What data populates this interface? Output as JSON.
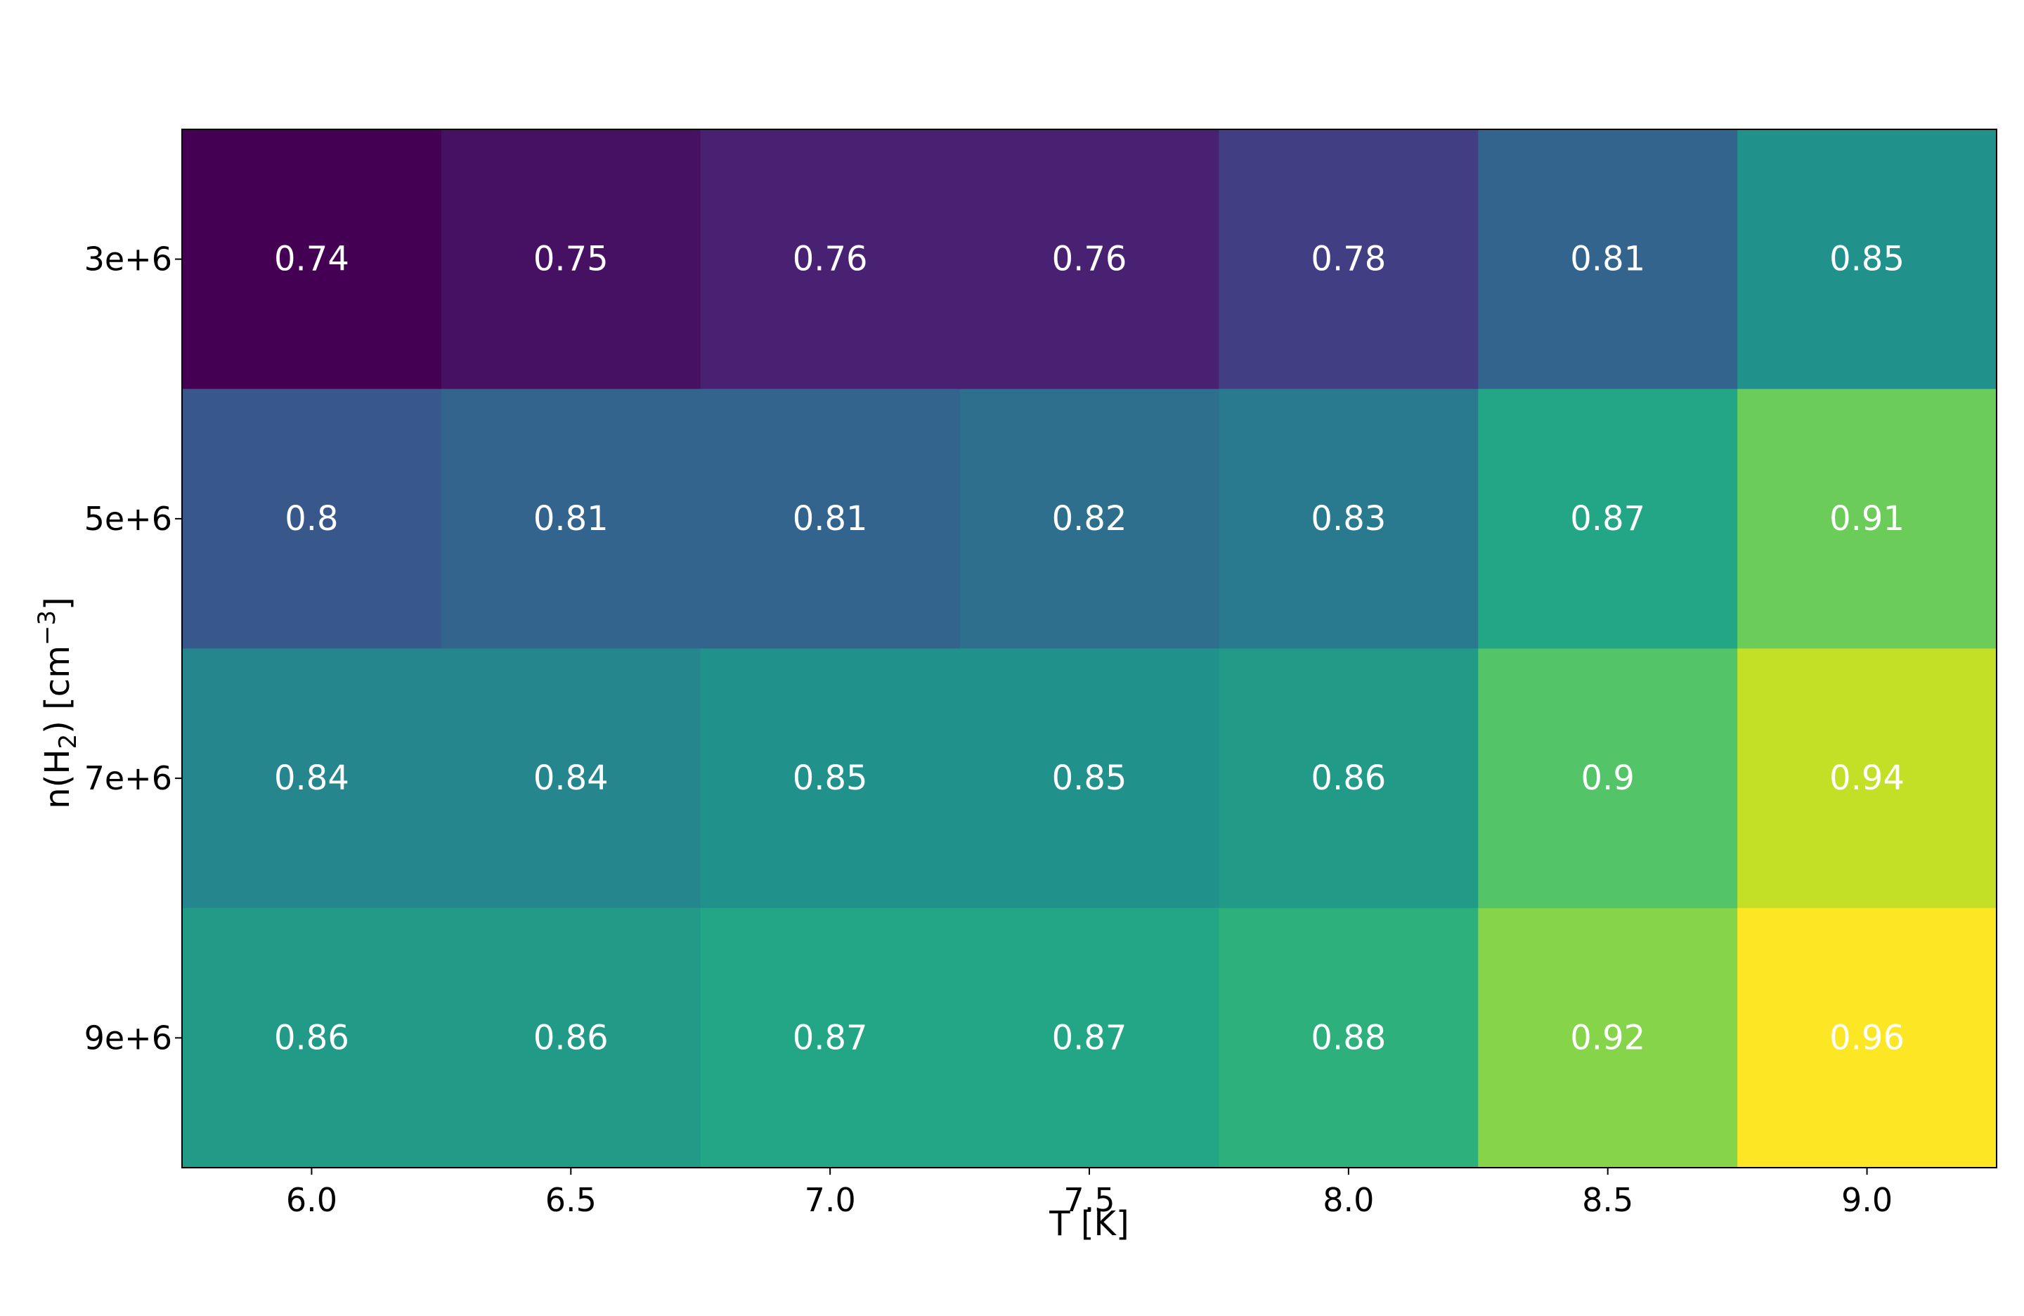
{
  "chart_data": {
    "type": "heatmap",
    "title": "",
    "xlabel": "T [K]",
    "ylabel_parts": {
      "base": "n(H",
      "sub": "2",
      "mid": ") [cm",
      "sup": "−3",
      "end": "]"
    },
    "x": [
      "6.0",
      "6.5",
      "7.0",
      "7.5",
      "8.0",
      "8.5",
      "9.0"
    ],
    "y": [
      "3e+6",
      "5e+6",
      "7e+6",
      "9e+6"
    ],
    "values": [
      [
        0.74,
        0.75,
        0.76,
        0.76,
        0.78,
        0.81,
        0.85
      ],
      [
        0.8,
        0.81,
        0.81,
        0.82,
        0.83,
        0.87,
        0.91
      ],
      [
        0.84,
        0.84,
        0.85,
        0.85,
        0.86,
        0.9,
        0.94
      ],
      [
        0.86,
        0.86,
        0.87,
        0.87,
        0.88,
        0.92,
        0.96
      ]
    ],
    "colormap": "viridis",
    "colorscale_range": [
      0.74,
      0.96
    ],
    "colorbar": false,
    "grid": false
  }
}
